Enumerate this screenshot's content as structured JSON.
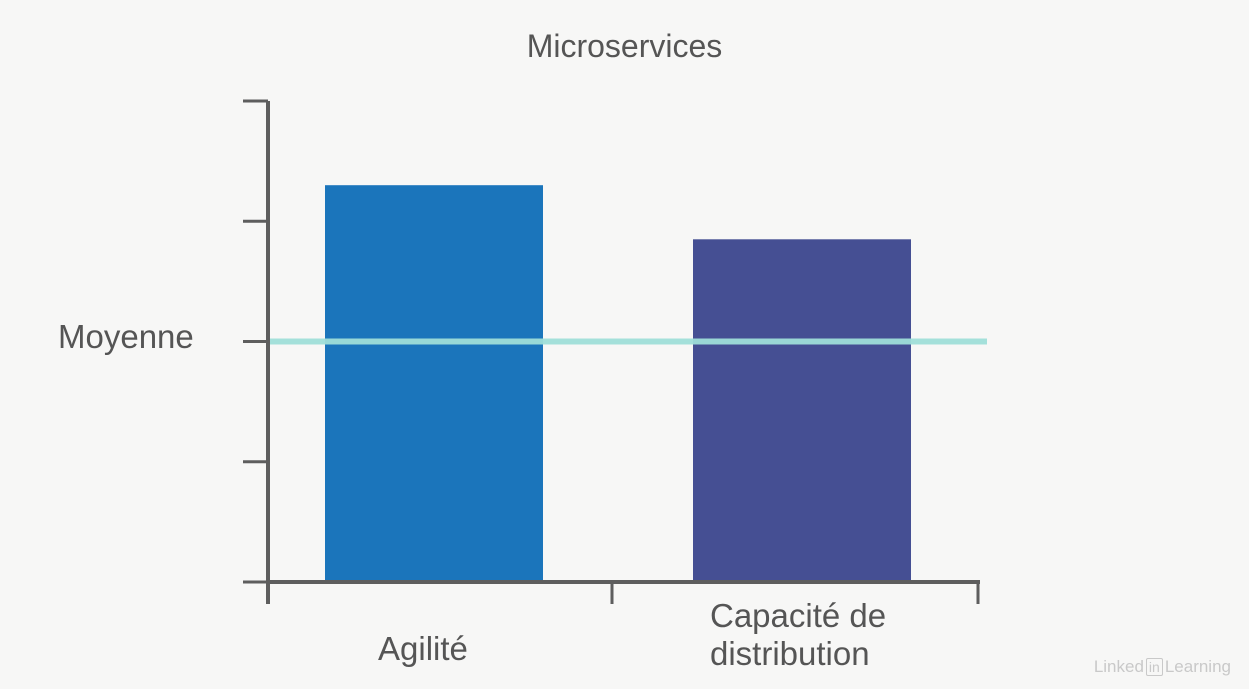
{
  "chart_data": {
    "type": "bar",
    "title": "Microservices",
    "categories": [
      "Agilité",
      "Capacité de distribution"
    ],
    "values": [
      3.3,
      2.85
    ],
    "ylim": [
      0,
      4
    ],
    "ytick_count": 4,
    "reference_line": {
      "label": "Moyenne",
      "value": 2
    },
    "xlabel": "",
    "ylabel": "",
    "colors": {
      "bars": [
        "#1b75bb",
        "#454f93"
      ],
      "reference_line": "#9fded8",
      "axis": "#5e5e5e"
    }
  },
  "watermark": {
    "prefix": "Linked",
    "boxed": "in",
    "suffix": "Learning"
  }
}
